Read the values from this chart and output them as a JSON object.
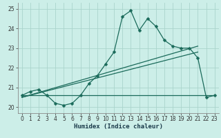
{
  "xlabel": "Humidex (Indice chaleur)",
  "background_color": "#cceee8",
  "grid_color": "#aad4cc",
  "line_color": "#1a6a5a",
  "xlim": [
    -0.5,
    23.5
  ],
  "ylim": [
    19.7,
    25.3
  ],
  "yticks": [
    20,
    21,
    22,
    23,
    24,
    25
  ],
  "xticks": [
    0,
    1,
    2,
    3,
    4,
    5,
    6,
    7,
    8,
    9,
    10,
    11,
    12,
    13,
    14,
    15,
    16,
    17,
    18,
    19,
    20,
    21,
    22,
    23
  ],
  "main_curve_x": [
    0,
    1,
    2,
    3,
    4,
    5,
    6,
    7,
    8,
    9,
    10,
    11,
    12,
    13,
    14,
    15,
    16,
    17,
    18,
    19,
    20,
    21,
    22,
    23
  ],
  "main_curve_y": [
    20.6,
    20.8,
    20.9,
    20.6,
    20.2,
    20.1,
    20.2,
    20.6,
    21.2,
    21.6,
    22.2,
    22.8,
    24.6,
    24.9,
    23.9,
    24.5,
    24.1,
    23.4,
    23.1,
    23.0,
    23.0,
    22.5,
    20.5,
    20.6
  ],
  "line1_x": [
    0,
    23
  ],
  "line1_y": [
    20.6,
    20.6
  ],
  "line2_x": [
    0,
    21
  ],
  "line2_y": [
    20.5,
    23.1
  ],
  "line3_x": [
    0,
    21
  ],
  "line3_y": [
    20.5,
    22.8
  ],
  "marker_size": 2.5,
  "linewidth": 0.9,
  "tick_fontsize": 5.5,
  "xlabel_fontsize": 6.5
}
